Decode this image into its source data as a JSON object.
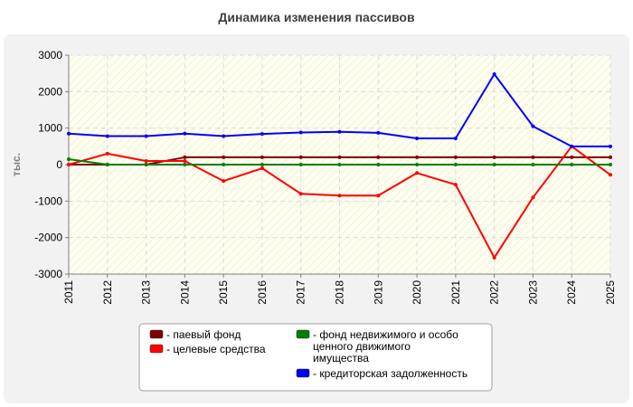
{
  "chart_data": {
    "type": "line",
    "title": "Динамика изменения пассивов",
    "xlabel": "",
    "ylabel": "тыс.",
    "categories": [
      "2011",
      "2012",
      "2013",
      "2014",
      "2015",
      "2016",
      "2017",
      "2018",
      "2019",
      "2020",
      "2021",
      "2022",
      "2023",
      "2024",
      "2025"
    ],
    "ylim": [
      -3000,
      3000
    ],
    "yticks": [
      3000,
      2000,
      1000,
      0,
      -1000,
      -2000,
      -3000
    ],
    "grid": true,
    "legend_position": "bottom",
    "series": [
      {
        "name": "паевый фонд",
        "color": "#800000",
        "values": [
          0,
          0,
          0,
          200,
          200,
          200,
          200,
          200,
          200,
          200,
          200,
          200,
          200,
          200,
          200
        ]
      },
      {
        "name": "целевые средства",
        "color": "#ff0000",
        "values": [
          0,
          300,
          100,
          100,
          -450,
          -100,
          -800,
          -850,
          -850,
          -230,
          -550,
          -2550,
          -900,
          500,
          -280
        ]
      },
      {
        "name": "фонд недвижимого и особо ценного движимого имущества",
        "color": "#008000",
        "values": [
          150,
          0,
          0,
          0,
          0,
          0,
          0,
          0,
          0,
          0,
          0,
          0,
          0,
          0,
          0
        ]
      },
      {
        "name": "кредиторская задолженность",
        "color": "#0000ff",
        "values": [
          850,
          780,
          780,
          850,
          780,
          840,
          880,
          900,
          870,
          720,
          720,
          2480,
          1050,
          500,
          500
        ]
      }
    ],
    "legend_items": [
      {
        "label": "- паевый фонд",
        "color": "#800000"
      },
      {
        "label": "- целевые средства",
        "color": "#ff0000"
      },
      {
        "label": "- фонд недвижимого и особо",
        "color": "#008000",
        "lines": [
          "ценного движимого",
          "имущества"
        ]
      },
      {
        "label": "- кредиторская задолженность",
        "color": "#0000ff"
      }
    ]
  }
}
